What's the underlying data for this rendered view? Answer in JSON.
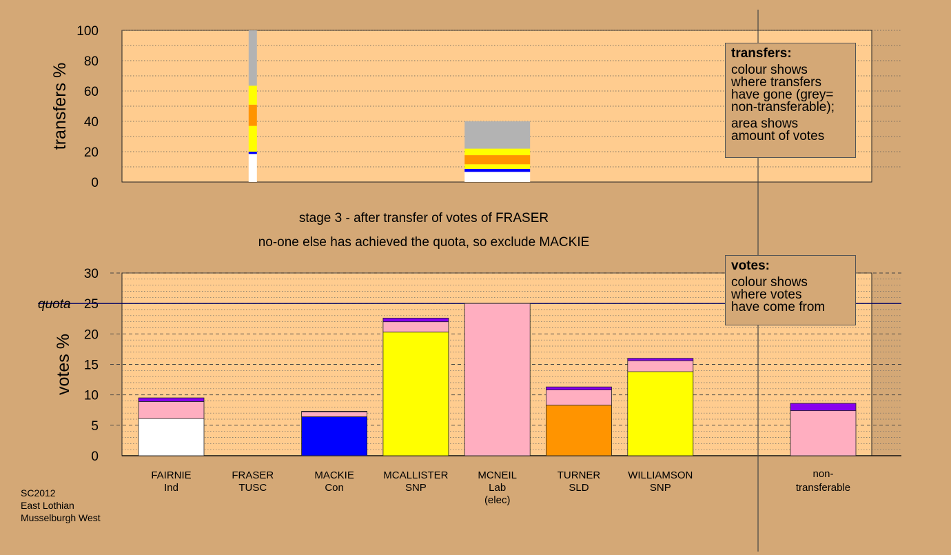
{
  "caption": {
    "stage": "stage 3 - after transfer of votes of FRASER",
    "note": "no-one else has achieved the quota, so exclude MACKIE"
  },
  "credit": [
    "SC2012",
    "East Lothian",
    "Musselburgh West"
  ],
  "legend_transfers": {
    "title": "transfers:",
    "lines": [
      "colour shows",
      "where transfers",
      "have gone (grey=",
      "non-transferable);"
    ],
    "lines2": [
      "area shows",
      "amount of votes"
    ]
  },
  "legend_votes": {
    "title": "votes:",
    "lines": [
      "colour shows",
      "where votes",
      "have come from"
    ]
  },
  "colors": {
    "background": "#d4a876",
    "plot": "#ffcc8f",
    "Ind": "#ffffff",
    "TUSC": "#000000",
    "Con": "#0000ff",
    "SNP": "#ffff00",
    "Lab": "#ffaec0",
    "SLD": "#ff9400",
    "NT": "#b3b3b3",
    "purple": "#8800ee",
    "quota_line": "#000066"
  },
  "chart_data": [
    {
      "type": "bar",
      "name": "transfers",
      "ylabel": "transfers %",
      "ylim": [
        0,
        100
      ],
      "yticks": [
        0,
        20,
        40,
        60,
        80,
        100
      ],
      "columns": [
        {
          "slot": "FRASER",
          "width_share": 0.025,
          "segments": [
            {
              "to": "FAIRNIE",
              "color": "#ffffff",
              "value": 18.5
            },
            {
              "to": "MACKIE",
              "color": "#0000ff",
              "value": 1.5
            },
            {
              "to": "MCALLISTER",
              "color": "#ffff00",
              "value": 17.0
            },
            {
              "to": "TURNER",
              "color": "#ff9400",
              "value": 14.0
            },
            {
              "to": "WILLIAMSON",
              "color": "#ffff00",
              "value": 12.5
            },
            {
              "to": "non-transferable",
              "color": "#b3b3b3",
              "value": 36.5
            }
          ]
        },
        {
          "slot": "MCNEIL",
          "width_share": 1.0,
          "segments": [
            {
              "to": "FAIRNIE",
              "color": "#ffffff",
              "value": 6.7
            },
            {
              "to": "MACKIE",
              "color": "#0000ff",
              "value": 2.0
            },
            {
              "to": "MCALLISTER",
              "color": "#ffff00",
              "value": 3.0
            },
            {
              "to": "TURNER",
              "color": "#ff9400",
              "value": 6.0
            },
            {
              "to": "WILLIAMSON",
              "color": "#ffff00",
              "value": 4.3
            },
            {
              "to": "non-transferable",
              "color": "#b3b3b3",
              "value": 18.0
            }
          ]
        }
      ]
    },
    {
      "type": "bar",
      "name": "votes",
      "ylabel": "votes %",
      "ylim": [
        0,
        30
      ],
      "yticks": [
        0,
        5,
        10,
        15,
        20,
        25,
        30
      ],
      "quota": 25,
      "quota_label": "quota",
      "candidates": [
        {
          "name": "FAIRNIE",
          "party": "Ind",
          "extra": "",
          "segments": [
            {
              "from": "Ind",
              "color": "#ffffff",
              "value": 6.1
            },
            {
              "from": "Lab",
              "color": "#ffaec0",
              "value": 2.8
            },
            {
              "from": "transfer",
              "color": "#8800ee",
              "value": 0.6
            }
          ]
        },
        {
          "name": "FRASER",
          "party": "TUSC",
          "extra": "",
          "segments": []
        },
        {
          "name": "MACKIE",
          "party": "Con",
          "extra": "",
          "segments": [
            {
              "from": "Con",
              "color": "#0000ff",
              "value": 6.4
            },
            {
              "from": "Lab",
              "color": "#ffaec0",
              "value": 0.8
            },
            {
              "from": "transfer",
              "color": "#8800ee",
              "value": 0.1
            }
          ]
        },
        {
          "name": "MCALLISTER",
          "party": "SNP",
          "extra": "",
          "segments": [
            {
              "from": "SNP",
              "color": "#ffff00",
              "value": 20.3
            },
            {
              "from": "Lab",
              "color": "#ffaec0",
              "value": 1.7
            },
            {
              "from": "transfer",
              "color": "#8800ee",
              "value": 0.6
            }
          ]
        },
        {
          "name": "MCNEIL",
          "party": "Lab",
          "extra": "(elec)",
          "segments": [
            {
              "from": "Lab",
              "color": "#ffaec0",
              "value": 25.0
            }
          ]
        },
        {
          "name": "TURNER",
          "party": "SLD",
          "extra": "",
          "segments": [
            {
              "from": "SLD",
              "color": "#ff9400",
              "value": 8.3
            },
            {
              "from": "Lab",
              "color": "#ffaec0",
              "value": 2.5
            },
            {
              "from": "transfer",
              "color": "#8800ee",
              "value": 0.5
            }
          ]
        },
        {
          "name": "WILLIAMSON",
          "party": "SNP",
          "extra": "",
          "segments": [
            {
              "from": "SNP",
              "color": "#ffff00",
              "value": 13.8
            },
            {
              "from": "Lab",
              "color": "#ffaec0",
              "value": 1.8
            },
            {
              "from": "transfer",
              "color": "#8800ee",
              "value": 0.4
            }
          ]
        }
      ],
      "nontransferable": {
        "label": [
          "non-",
          "transferable"
        ],
        "segments": [
          {
            "from": "Lab",
            "color": "#ffaec0",
            "value": 7.4
          },
          {
            "from": "transfer",
            "color": "#8800ee",
            "value": 1.2
          }
        ]
      }
    }
  ]
}
